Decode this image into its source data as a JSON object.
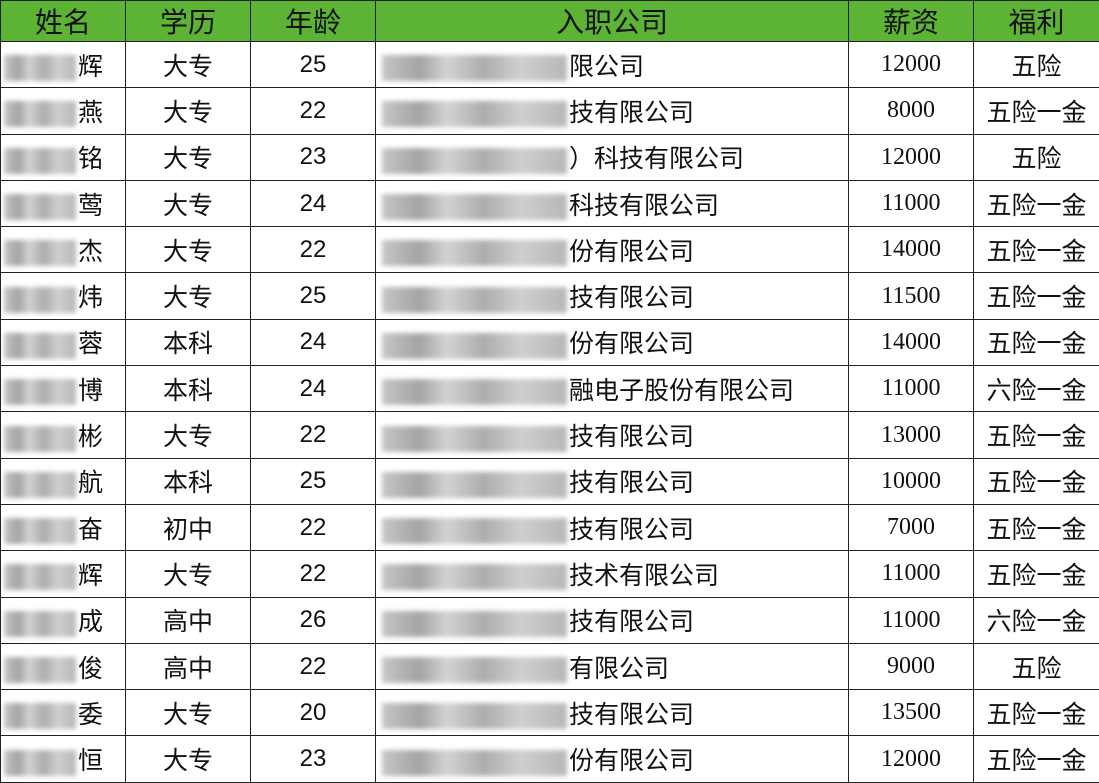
{
  "headers": [
    "姓名",
    "学历",
    "年龄",
    "入职公司",
    "薪资",
    "福利"
  ],
  "header_color": "#5db334",
  "rows": [
    {
      "name": "辉",
      "edu": "大专",
      "age": "25",
      "company": "限公司",
      "salary": "12000",
      "welfare": "五险"
    },
    {
      "name": "燕",
      "edu": "大专",
      "age": "22",
      "company": "技有限公司",
      "salary": "8000",
      "welfare": "五险一金"
    },
    {
      "name": "铭",
      "edu": "大专",
      "age": "23",
      "company": "）科技有限公司",
      "salary": "12000",
      "welfare": "五险"
    },
    {
      "name": "莺",
      "edu": "大专",
      "age": "24",
      "company": "科技有限公司",
      "salary": "11000",
      "welfare": "五险一金"
    },
    {
      "name": "杰",
      "edu": "大专",
      "age": "22",
      "company": "份有限公司",
      "salary": "14000",
      "welfare": "五险一金"
    },
    {
      "name": "炜",
      "edu": "大专",
      "age": "25",
      "company": "技有限公司",
      "salary": "11500",
      "welfare": "五险一金"
    },
    {
      "name": "蓉",
      "edu": "本科",
      "age": "24",
      "company": "份有限公司",
      "salary": "14000",
      "welfare": "五险一金"
    },
    {
      "name": "博",
      "edu": "本科",
      "age": "24",
      "company": "融电子股份有限公司",
      "salary": "11000",
      "welfare": "六险一金"
    },
    {
      "name": "彬",
      "edu": "大专",
      "age": "22",
      "company": "技有限公司",
      "salary": "13000",
      "welfare": "五险一金"
    },
    {
      "name": "航",
      "edu": "本科",
      "age": "25",
      "company": "技有限公司",
      "salary": "10000",
      "welfare": "五险一金"
    },
    {
      "name": "奋",
      "edu": "初中",
      "age": "22",
      "company": "技有限公司",
      "salary": "7000",
      "welfare": "五险一金"
    },
    {
      "name": "辉",
      "edu": "大专",
      "age": "22",
      "company": "技术有限公司",
      "salary": "11000",
      "welfare": "五险一金"
    },
    {
      "name": "成",
      "edu": "高中",
      "age": "26",
      "company": "技有限公司",
      "salary": "11000",
      "welfare": "六险一金"
    },
    {
      "name": "俊",
      "edu": "高中",
      "age": "22",
      "company": "有限公司",
      "salary": "9000",
      "welfare": "五险"
    },
    {
      "name": "委",
      "edu": "大专",
      "age": "20",
      "company": "技有限公司",
      "salary": "13500",
      "welfare": "五险一金"
    },
    {
      "name": "恒",
      "edu": "大专",
      "age": "23",
      "company": "份有限公司",
      "salary": "12000",
      "welfare": "五险一金"
    }
  ]
}
